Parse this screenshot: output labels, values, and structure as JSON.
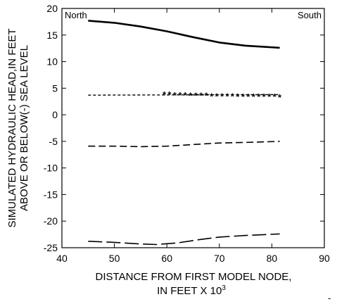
{
  "chart_data": {
    "type": "line",
    "title": "",
    "xlabel": [
      "DISTANCE FROM FIRST MODEL NODE,",
      "IN FEET X 10",
      "3"
    ],
    "ylabel": [
      "SIMULATED HYDRAULIC HEAD,IN FEET",
      "ABOVE OR BELOW(-) SEA LEVEL"
    ],
    "xlim": [
      40,
      90
    ],
    "ylim": [
      -25,
      20
    ],
    "x_ticks": [
      40,
      50,
      60,
      70,
      80,
      90
    ],
    "y_ticks": [
      -25,
      -20,
      -15,
      -10,
      -5,
      0,
      5,
      10,
      15,
      20
    ],
    "annotations": {
      "left": "North",
      "right": "South",
      "corner": "-"
    },
    "grid": false,
    "series": [
      {
        "style": "solid",
        "color": "#000000",
        "x": [
          45,
          50,
          55,
          60,
          65,
          70,
          75,
          81.5
        ],
        "y": [
          17.7,
          17.3,
          16.6,
          15.7,
          14.6,
          13.6,
          13.0,
          12.6
        ]
      },
      {
        "style": "short-dash",
        "color": "#000000",
        "x": [
          45,
          81.5
        ],
        "y": [
          3.7,
          3.8
        ]
      },
      {
        "style": "markers",
        "marker": "*",
        "color": "#000000",
        "x": [
          59.5,
          60.5,
          61.5,
          62.5,
          63.5,
          64.5,
          65.5,
          66.5,
          67.5,
          68.5,
          69.5,
          70.5,
          71.5,
          72.5,
          73.5,
          74.5,
          75.5,
          76.5,
          77.5,
          78.5,
          79.5,
          80.5,
          81.5
        ],
        "y": [
          4.1,
          4.1,
          4.0,
          4.0,
          4.0,
          3.9,
          3.9,
          3.9,
          3.9,
          3.8,
          3.8,
          3.8,
          3.8,
          3.8,
          3.7,
          3.7,
          3.7,
          3.7,
          3.7,
          3.7,
          3.7,
          3.7,
          3.6
        ]
      },
      {
        "style": "medium-dash",
        "color": "#000000",
        "x": [
          45,
          50,
          55,
          60,
          65,
          70,
          75,
          81.5
        ],
        "y": [
          -5.9,
          -5.9,
          -6.0,
          -5.9,
          -5.6,
          -5.3,
          -5.2,
          -5.0
        ]
      },
      {
        "style": "long-dash",
        "color": "#000000",
        "x": [
          45,
          50,
          55,
          58,
          62,
          66,
          70,
          75,
          81.5
        ],
        "y": [
          -23.8,
          -24.0,
          -24.3,
          -24.4,
          -24.1,
          -23.5,
          -23.0,
          -22.7,
          -22.4
        ]
      }
    ]
  }
}
